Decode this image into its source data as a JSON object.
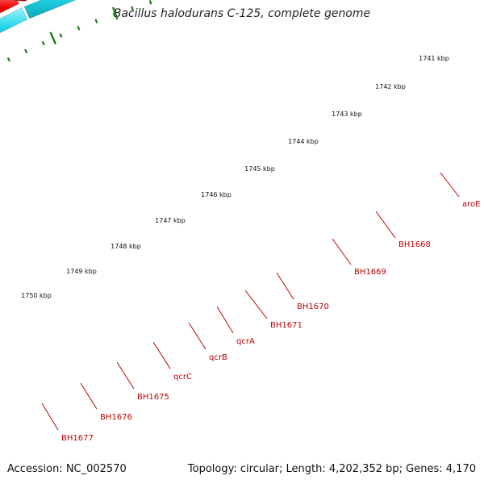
{
  "title": "Bacillus halodurans C-125, complete genome",
  "footer": {
    "accession": "Accession: NC_002570",
    "topology": "Topology: circular; Length: 4,202,352 bp; Genes: 4,170"
  },
  "colors": {
    "background": "#ffffff",
    "backbone": "#7a7a7a",
    "ruler_ticks": "#1b7a1b",
    "gene_red": "#ee0000",
    "gene_gray": "#bcbcbc",
    "gene_darkgray": "#5c5c5c",
    "gene_cyan": "#22d6ea",
    "gene_blue": "#4a7fb5",
    "label_red": "#c00000"
  },
  "ruler_labels": [
    "1741 kbp",
    "1742 kbp",
    "1743 kbp",
    "1744 kbp",
    "1745 kbp",
    "1746 kbp",
    "1747 kbp",
    "1748 kbp",
    "1749 kbp",
    "1750 kbp"
  ],
  "gene_labels": [
    "aroE",
    "BH1668",
    "BH1669",
    "BH1670",
    "BH1671",
    "qcrA",
    "qcrB",
    "qcrC",
    "BH1675",
    "BH1676",
    "BH1677"
  ],
  "features": [
    {
      "track": "outer",
      "type": "red"
    },
    {
      "track": "outer",
      "type": "red"
    },
    {
      "track": "outer",
      "type": "red"
    },
    {
      "track": "outer",
      "type": "red"
    },
    {
      "track": "outer",
      "type": "red"
    },
    {
      "track": "outer",
      "type": "red"
    },
    {
      "track": "outer",
      "type": "red"
    },
    {
      "track": "outer",
      "type": "red"
    },
    {
      "track": "outer",
      "type": "red"
    },
    {
      "track": "outer",
      "type": "red"
    },
    {
      "track": "outer",
      "type": "red"
    },
    {
      "track": "outer",
      "type": "red"
    },
    {
      "track": "inner",
      "type": "gray"
    },
    {
      "track": "inner",
      "type": "gray"
    },
    {
      "track": "inner",
      "type": "darkgray"
    },
    {
      "track": "inner",
      "type": "darkgray"
    },
    {
      "track": "inner",
      "type": "cyan"
    },
    {
      "track": "inner",
      "type": "cyan"
    },
    {
      "track": "inner",
      "type": "blue"
    },
    {
      "track": "inner",
      "type": "blue"
    }
  ]
}
